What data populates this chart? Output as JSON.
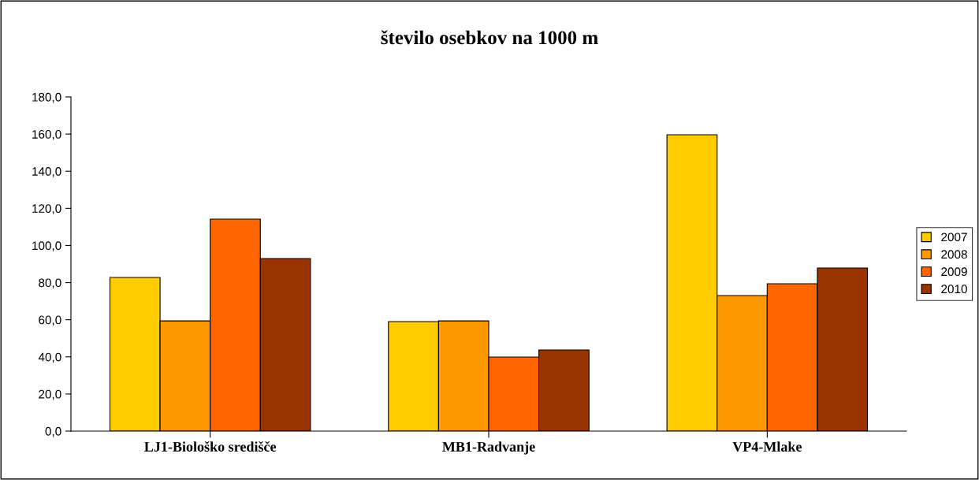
{
  "chart_data": {
    "type": "bar",
    "title": "število osebkov na 1000 m",
    "categories": [
      "LJ1-Biološko središče",
      "MB1-Radvanje",
      "VP4-Mlake"
    ],
    "series": [
      {
        "name": "2007",
        "color": "#ffcc00",
        "values": [
          82.8,
          59.0,
          159.6
        ]
      },
      {
        "name": "2008",
        "color": "#ff9900",
        "values": [
          59.4,
          59.4,
          73.0
        ]
      },
      {
        "name": "2009",
        "color": "#ff6600",
        "values": [
          114.2,
          39.9,
          79.4
        ]
      },
      {
        "name": "2010",
        "color": "#993300",
        "values": [
          93.0,
          43.7,
          87.9
        ]
      }
    ],
    "ylim": [
      0,
      180
    ],
    "yticks": [
      {
        "value": 0,
        "label": "0,0"
      },
      {
        "value": 20,
        "label": "20,0"
      },
      {
        "value": 40,
        "label": "40,0"
      },
      {
        "value": 60,
        "label": "60,0"
      },
      {
        "value": 80,
        "label": "80,0"
      },
      {
        "value": 100,
        "label": "100,0"
      },
      {
        "value": 120,
        "label": "120,0"
      },
      {
        "value": 140,
        "label": "140,0"
      },
      {
        "value": 160,
        "label": "160,0"
      },
      {
        "value": 180,
        "label": "180,0"
      }
    ],
    "grid": false,
    "legend": "right"
  }
}
